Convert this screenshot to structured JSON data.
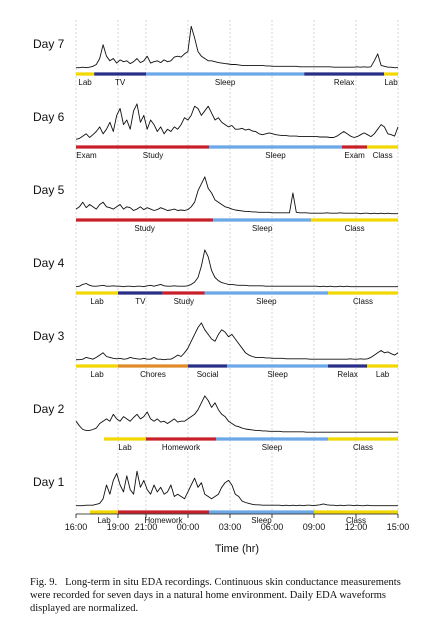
{
  "chart_data": {
    "type": "line",
    "xlabel": "Time (hr)",
    "x_ticks": [
      "16:00",
      "19:00",
      "21:00",
      "00:00",
      "03:00",
      "06:00",
      "09:00",
      "12:00",
      "15:00"
    ],
    "days": [
      {
        "label": "Day 7",
        "eda": [
          0.05,
          0.05,
          0.06,
          0.05,
          0.06,
          0.08,
          0.12,
          0.25,
          0.55,
          0.3,
          0.2,
          0.25,
          0.15,
          0.22,
          0.18,
          0.2,
          0.14,
          0.18,
          0.25,
          0.16,
          0.2,
          0.3,
          0.15,
          0.18,
          0.2,
          0.16,
          0.22,
          0.18,
          0.2,
          0.28,
          0.3,
          0.28,
          0.35,
          0.4,
          0.95,
          0.7,
          0.4,
          0.3,
          0.25,
          0.2,
          0.2,
          0.18,
          0.16,
          0.15,
          0.14,
          0.13,
          0.12,
          0.12,
          0.11,
          0.1,
          0.1,
          0.1,
          0.1,
          0.1,
          0.1,
          0.1,
          0.09,
          0.09,
          0.08,
          0.08,
          0.08,
          0.08,
          0.08,
          0.08,
          0.08,
          0.08,
          0.07,
          0.07,
          0.07,
          0.07,
          0.07,
          0.07,
          0.07,
          0.07,
          0.07,
          0.07,
          0.06,
          0.06,
          0.06,
          0.06,
          0.06,
          0.06,
          0.06,
          0.07,
          0.06,
          0.07,
          0.06,
          0.07,
          0.2,
          0.35,
          0.1,
          0.08,
          0.06,
          0.06,
          0.05,
          0.05
        ],
        "segments": [
          {
            "label": "Lab",
            "start": 0.0,
            "end": 1.3,
            "color": "#f2d800"
          },
          {
            "label": "TV",
            "start": 1.3,
            "end": 5.0,
            "color": "#2a2f86"
          },
          {
            "label": "Sleep",
            "start": 5.0,
            "end": 16.3,
            "color": "#6aa8e8"
          },
          {
            "label": "Relax",
            "start": 16.3,
            "end": 22.0,
            "color": "#2a2f86"
          },
          {
            "label": "Lab",
            "start": 22.0,
            "end": 23.0,
            "color": "#f2d800"
          }
        ]
      },
      {
        "label": "Day 6",
        "eda": [
          0.08,
          0.1,
          0.15,
          0.2,
          0.12,
          0.18,
          0.25,
          0.35,
          0.2,
          0.3,
          0.45,
          0.25,
          0.6,
          0.75,
          0.4,
          0.5,
          0.3,
          0.7,
          0.85,
          0.45,
          0.6,
          0.3,
          0.5,
          0.4,
          0.25,
          0.35,
          0.2,
          0.3,
          0.25,
          0.35,
          0.3,
          0.4,
          0.55,
          0.5,
          0.6,
          0.8,
          0.75,
          0.6,
          0.7,
          0.8,
          0.65,
          0.5,
          0.55,
          0.45,
          0.4,
          0.35,
          0.38,
          0.3,
          0.3,
          0.32,
          0.28,
          0.3,
          0.26,
          0.25,
          0.2,
          0.18,
          0.2,
          0.22,
          0.2,
          0.18,
          0.17,
          0.16,
          0.16,
          0.15,
          0.15,
          0.15,
          0.14,
          0.14,
          0.14,
          0.14,
          0.14,
          0.14,
          0.13,
          0.13,
          0.13,
          0.12,
          0.12,
          0.15,
          0.2,
          0.25,
          0.2,
          0.15,
          0.12,
          0.14,
          0.18,
          0.22,
          0.18,
          0.14,
          0.2,
          0.3,
          0.4,
          0.35,
          0.2,
          0.18,
          0.15,
          0.35
        ],
        "segments": [
          {
            "label": "Exam",
            "start": 0.0,
            "end": 1.5,
            "color": "#c8202a"
          },
          {
            "label": "Study",
            "start": 1.5,
            "end": 9.5,
            "color": "#c8202a"
          },
          {
            "label": "Sleep",
            "start": 9.5,
            "end": 19.0,
            "color": "#6aa8e8"
          },
          {
            "label": "Exam",
            "start": 19.0,
            "end": 20.8,
            "color": "#c8202a"
          },
          {
            "label": "Class",
            "start": 20.8,
            "end": 23.0,
            "color": "#f2d800"
          }
        ]
      },
      {
        "label": "Day 5",
        "eda": [
          0.15,
          0.2,
          0.3,
          0.18,
          0.25,
          0.2,
          0.15,
          0.25,
          0.3,
          0.2,
          0.18,
          0.15,
          0.2,
          0.25,
          0.15,
          0.2,
          0.18,
          0.12,
          0.15,
          0.2,
          0.14,
          0.18,
          0.15,
          0.12,
          0.14,
          0.18,
          0.15,
          0.12,
          0.13,
          0.15,
          0.12,
          0.13,
          0.12,
          0.14,
          0.2,
          0.3,
          0.55,
          0.7,
          0.85,
          0.6,
          0.5,
          0.35,
          0.3,
          0.25,
          0.2,
          0.18,
          0.15,
          0.13,
          0.12,
          0.11,
          0.1,
          0.1,
          0.09,
          0.09,
          0.08,
          0.08,
          0.08,
          0.08,
          0.07,
          0.07,
          0.07,
          0.07,
          0.07,
          0.07,
          0.5,
          0.08,
          0.07,
          0.07,
          0.07,
          0.06,
          0.06,
          0.06,
          0.06,
          0.06,
          0.07,
          0.06,
          0.06,
          0.06,
          0.07,
          0.06,
          0.06,
          0.06,
          0.06,
          0.06,
          0.05,
          0.06,
          0.06,
          0.05,
          0.06,
          0.05,
          0.06,
          0.05,
          0.06,
          0.05,
          0.05,
          0.05
        ],
        "segments": [
          {
            "label": "Study",
            "start": 0.0,
            "end": 9.8,
            "color": "#c8202a"
          },
          {
            "label": "Sleep",
            "start": 9.8,
            "end": 16.8,
            "color": "#6aa8e8"
          },
          {
            "label": "Class",
            "start": 16.8,
            "end": 23.0,
            "color": "#f2d800"
          }
        ]
      },
      {
        "label": "Day 4",
        "eda": [
          0.05,
          0.06,
          0.1,
          0.12,
          0.08,
          0.06,
          0.06,
          0.07,
          0.08,
          0.06,
          0.06,
          0.07,
          0.06,
          0.06,
          0.05,
          0.06,
          0.06,
          0.05,
          0.06,
          0.06,
          0.05,
          0.07,
          0.08,
          0.06,
          0.08,
          0.1,
          0.07,
          0.06,
          0.06,
          0.07,
          0.06,
          0.06,
          0.06,
          0.07,
          0.1,
          0.15,
          0.25,
          0.5,
          0.85,
          0.7,
          0.4,
          0.25,
          0.18,
          0.14,
          0.12,
          0.1,
          0.1,
          0.09,
          0.08,
          0.08,
          0.08,
          0.07,
          0.07,
          0.07,
          0.07,
          0.07,
          0.06,
          0.06,
          0.06,
          0.06,
          0.06,
          0.06,
          0.06,
          0.06,
          0.06,
          0.06,
          0.06,
          0.06,
          0.06,
          0.06,
          0.06,
          0.06,
          0.05,
          0.06,
          0.05,
          0.06,
          0.05,
          0.05,
          0.06,
          0.05,
          0.06,
          0.05,
          0.05,
          0.05,
          0.05,
          0.05,
          0.05,
          0.05,
          0.05,
          0.05,
          0.05,
          0.05,
          0.05,
          0.05,
          0.05,
          0.05
        ],
        "segments": [
          {
            "label": "Lab",
            "start": 0.0,
            "end": 3.0,
            "color": "#f2d800"
          },
          {
            "label": "TV",
            "start": 3.0,
            "end": 6.2,
            "color": "#2a2f86"
          },
          {
            "label": "Study",
            "start": 6.2,
            "end": 9.2,
            "color": "#c8202a"
          },
          {
            "label": "Sleep",
            "start": 9.2,
            "end": 18.0,
            "color": "#6aa8e8"
          },
          {
            "label": "Class",
            "start": 18.0,
            "end": 23.0,
            "color": "#f2d800"
          }
        ]
      },
      {
        "label": "Day 3",
        "eda": [
          0.05,
          0.05,
          0.06,
          0.1,
          0.08,
          0.06,
          0.1,
          0.15,
          0.2,
          0.12,
          0.1,
          0.08,
          0.07,
          0.08,
          0.06,
          0.07,
          0.1,
          0.08,
          0.07,
          0.06,
          0.08,
          0.06,
          0.06,
          0.1,
          0.06,
          0.06,
          0.05,
          0.06,
          0.06,
          0.1,
          0.15,
          0.12,
          0.2,
          0.3,
          0.45,
          0.6,
          0.75,
          0.85,
          0.7,
          0.6,
          0.5,
          0.45,
          0.6,
          0.7,
          0.65,
          0.55,
          0.6,
          0.5,
          0.4,
          0.3,
          0.2,
          0.15,
          0.12,
          0.1,
          0.1,
          0.1,
          0.09,
          0.09,
          0.08,
          0.08,
          0.08,
          0.08,
          0.07,
          0.07,
          0.07,
          0.07,
          0.07,
          0.07,
          0.07,
          0.06,
          0.06,
          0.06,
          0.06,
          0.06,
          0.06,
          0.06,
          0.06,
          0.06,
          0.06,
          0.06,
          0.06,
          0.07,
          0.06,
          0.06,
          0.07,
          0.06,
          0.07,
          0.1,
          0.15,
          0.2,
          0.25,
          0.2,
          0.22,
          0.18,
          0.15,
          0.2
        ],
        "segments": [
          {
            "label": "Lab",
            "start": 0.0,
            "end": 3.0,
            "color": "#f2d800"
          },
          {
            "label": "Chores",
            "start": 3.0,
            "end": 8.0,
            "color": "#e08a2a"
          },
          {
            "label": "Social",
            "start": 8.0,
            "end": 10.8,
            "color": "#2a2f86"
          },
          {
            "label": "Sleep",
            "start": 10.8,
            "end": 18.0,
            "color": "#6aa8e8"
          },
          {
            "label": "Relax",
            "start": 18.0,
            "end": 20.8,
            "color": "#2a2f86"
          },
          {
            "label": "Lab",
            "start": 20.8,
            "end": 23.0,
            "color": "#f2d800"
          }
        ]
      },
      {
        "label": "Day 2",
        "eda": [
          0.3,
          0.2,
          0.12,
          0.1,
          0.1,
          0.12,
          0.15,
          0.25,
          0.3,
          0.35,
          0.3,
          0.45,
          0.35,
          0.3,
          0.4,
          0.35,
          0.3,
          0.38,
          0.45,
          0.35,
          0.4,
          0.5,
          0.35,
          0.3,
          0.35,
          0.28,
          0.3,
          0.25,
          0.3,
          0.35,
          0.28,
          0.3,
          0.3,
          0.35,
          0.4,
          0.45,
          0.55,
          0.7,
          0.85,
          0.75,
          0.6,
          0.7,
          0.55,
          0.45,
          0.4,
          0.3,
          0.25,
          0.2,
          0.18,
          0.15,
          0.13,
          0.12,
          0.11,
          0.1,
          0.1,
          0.09,
          0.09,
          0.08,
          0.08,
          0.08,
          0.08,
          0.07,
          0.07,
          0.07,
          0.07,
          0.07,
          0.07,
          0.07,
          0.06,
          0.06,
          0.06,
          0.06,
          0.06,
          0.06,
          0.06,
          0.06,
          0.06,
          0.06,
          0.06,
          0.06,
          0.06,
          0.06,
          0.06,
          0.06,
          0.06,
          0.06,
          0.06,
          0.06,
          0.06,
          0.06,
          0.06,
          0.06,
          0.06,
          0.06,
          0.06,
          0.06
        ],
        "segments": [
          {
            "label": "Lab",
            "start": 2.0,
            "end": 5.0,
            "color": "#f2d800"
          },
          {
            "label": "Homework",
            "start": 5.0,
            "end": 10.0,
            "color": "#c8202a"
          },
          {
            "label": "Sleep",
            "start": 10.0,
            "end": 18.0,
            "color": "#6aa8e8"
          },
          {
            "label": "Class",
            "start": 18.0,
            "end": 23.0,
            "color": "#f2d800"
          }
        ]
      },
      {
        "label": "Day 1",
        "eda": [
          0.05,
          0.05,
          0.05,
          0.06,
          0.06,
          0.06,
          0.08,
          0.1,
          0.2,
          0.5,
          0.3,
          0.6,
          0.75,
          0.5,
          0.35,
          0.7,
          0.4,
          0.3,
          0.8,
          0.45,
          0.6,
          0.4,
          0.3,
          0.5,
          0.35,
          0.45,
          0.3,
          0.35,
          0.5,
          0.25,
          0.3,
          0.25,
          0.2,
          0.35,
          0.5,
          0.65,
          0.45,
          0.55,
          0.3,
          0.25,
          0.2,
          0.25,
          0.3,
          0.45,
          0.55,
          0.6,
          0.5,
          0.3,
          0.25,
          0.15,
          0.12,
          0.1,
          0.08,
          0.07,
          0.07,
          0.06,
          0.06,
          0.06,
          0.06,
          0.06,
          0.06,
          0.05,
          0.06,
          0.05,
          0.06,
          0.05,
          0.06,
          0.05,
          0.06,
          0.06,
          0.05,
          0.06,
          0.07,
          0.09,
          0.07,
          0.06,
          0.06,
          0.05,
          0.06,
          0.05,
          0.06,
          0.06,
          0.05,
          0.06,
          0.05,
          0.05,
          0.06,
          0.05,
          0.05,
          0.05,
          0.05,
          0.05,
          0.05,
          0.05,
          0.05,
          0.05
        ],
        "segments": [
          {
            "label": "Lab",
            "start": 1.0,
            "end": 3.0,
            "color": "#f2d800"
          },
          {
            "label": "Homework",
            "start": 3.0,
            "end": 9.5,
            "color": "#c8202a"
          },
          {
            "label": "Sleep",
            "start": 9.5,
            "end": 17.0,
            "color": "#6aa8e8"
          },
          {
            "label": "Class",
            "start": 17.0,
            "end": 23.0,
            "color": "#f2d800"
          }
        ]
      }
    ]
  },
  "caption": {
    "number": "Fig. 9.",
    "text": "Long-term in situ EDA recordings. Continuous skin conductance measurements were recorded for seven days in a natural home environment. Daily EDA waveforms displayed are normalized."
  }
}
